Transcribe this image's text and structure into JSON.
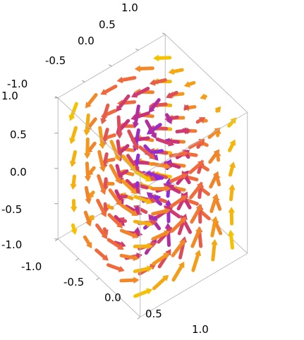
{
  "chart_data": {
    "type": "vector-field-3d",
    "title": "",
    "xlabel": "",
    "ylabel": "",
    "zlabel": "",
    "x_range": [
      -1,
      1
    ],
    "y_range": [
      -1,
      1
    ],
    "z_range": [
      -1,
      1
    ],
    "axes": {
      "x_ticks": [
        "-1.0",
        "-0.5",
        "0.0",
        "0.5",
        "1.0"
      ],
      "y_ticks": [
        "-1.0",
        "-0.5",
        "0.0",
        "0.5",
        "1.0"
      ],
      "z_ticks": [
        "-1.0",
        "-0.5",
        "0.0",
        "0.5",
        "1.0"
      ]
    },
    "grid": false,
    "legend": "none",
    "colors": {
      "low_magnitude": "#1a10d8",
      "mid_low": "#8a2be2",
      "mid": "#c8307a",
      "mid_high": "#f06a3c",
      "high_magnitude": "#f5c200",
      "box_edge": "#bdbdbd"
    },
    "sample_grid_per_axis": 6
  }
}
